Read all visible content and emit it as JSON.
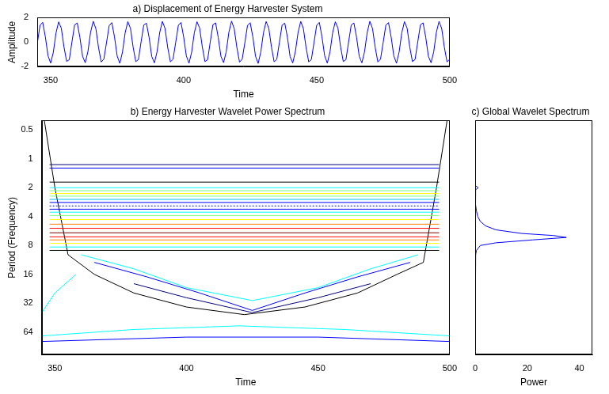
{
  "chart_data": [
    {
      "type": "line",
      "title": "a) Displacement of Energy Harvester System",
      "x_label": "Time",
      "y_label": "Amplitude",
      "color": "#0000ff",
      "grid": false,
      "xlim": [
        345,
        500
      ],
      "xticks": [
        350,
        400,
        450,
        500
      ],
      "ylim": [
        -2,
        2
      ],
      "yticks": [
        -2,
        0,
        2
      ],
      "x": [
        345,
        346,
        347,
        348,
        349,
        350,
        351,
        352,
        353,
        354,
        355,
        356,
        357,
        358,
        359,
        360,
        361,
        362,
        363,
        364,
        365,
        366,
        367,
        368,
        369,
        370,
        371,
        372,
        373,
        374,
        375,
        376,
        377,
        378,
        379,
        380,
        381,
        382,
        383,
        384,
        385,
        386,
        387,
        388,
        389,
        390,
        391,
        392,
        393,
        394,
        395,
        396,
        397,
        398,
        399,
        400,
        401,
        402,
        403,
        404,
        405,
        406,
        407,
        408,
        409,
        410,
        411,
        412,
        413,
        414,
        415,
        416,
        417,
        418,
        419,
        420,
        421,
        422,
        423,
        424,
        425,
        426,
        427,
        428,
        429,
        430,
        431,
        432,
        433,
        434,
        435,
        436,
        437,
        438,
        439,
        440,
        441,
        442,
        443,
        444,
        445,
        446,
        447,
        448,
        449,
        450,
        451,
        452,
        453,
        454,
        455,
        456,
        457,
        458,
        459,
        460,
        461,
        462,
        463,
        464,
        465,
        466,
        467,
        468,
        469,
        470,
        471,
        472,
        473,
        474,
        475,
        476,
        477,
        478,
        479,
        480,
        481,
        482,
        483,
        484,
        485,
        486,
        487,
        488,
        489,
        490,
        491,
        492,
        493,
        494,
        495,
        496,
        497,
        498,
        499,
        500
      ],
      "values": [
        -0.05,
        1.38,
        1.62,
        0.45,
        -1.1,
        -1.7,
        -0.82,
        0.75,
        1.66,
        1.15,
        -0.38,
        -1.56,
        -1.42,
        0.02,
        1.42,
        1.57,
        0.38,
        -1.15,
        -1.67,
        -0.76,
        0.81,
        1.71,
        1.1,
        -0.44,
        -1.61,
        -1.37,
        -0.03,
        1.36,
        1.6,
        0.43,
        -1.12,
        -1.72,
        -0.8,
        0.77,
        1.68,
        1.14,
        -0.4,
        -1.58,
        -1.41,
        0.04,
        1.41,
        1.55,
        0.4,
        -1.16,
        -1.68,
        -0.78,
        0.8,
        1.7,
        1.12,
        -0.42,
        -1.6,
        -1.39,
        -0.02,
        1.39,
        1.61,
        0.42,
        -1.11,
        -1.71,
        -0.81,
        0.76,
        1.67,
        1.16,
        -0.37,
        -1.57,
        -1.43,
        0.03,
        1.43,
        1.58,
        0.39,
        -1.14,
        -1.66,
        -0.77,
        0.82,
        1.72,
        1.11,
        -0.43,
        -1.62,
        -1.38,
        -0.04,
        1.37,
        1.59,
        0.44,
        -1.13,
        -1.73,
        -0.79,
        0.78,
        1.69,
        1.13,
        -0.39,
        -1.59,
        -1.4,
        0.01,
        1.4,
        1.56,
        0.41,
        -1.17,
        -1.69,
        -0.75,
        0.79,
        1.7,
        1.12,
        -0.41,
        -1.6,
        -1.41,
        -0.03,
        1.38,
        1.62,
        0.43,
        -1.1,
        -1.7,
        -0.8,
        0.77,
        1.67,
        1.15,
        -0.38,
        -1.57,
        -1.42,
        0.02,
        1.41,
        1.57,
        0.4,
        -1.15,
        -1.68,
        -0.77,
        0.8,
        1.71,
        1.11,
        -0.42,
        -1.61,
        -1.38,
        -0.02,
        1.39,
        1.6,
        0.42,
        -1.12,
        -1.71,
        -0.79,
        0.78,
        1.68,
        1.14,
        -0.4,
        -1.58,
        -1.4,
        0.03,
        1.42,
        1.58,
        0.4,
        -1.14,
        -1.67,
        -0.78,
        0.81,
        1.7,
        1.12,
        -0.41,
        -1.6,
        -1.39
      ]
    },
    {
      "type": "contour",
      "title": "b) Energy Harvester Wavelet Power Spectrum",
      "x_label": "Time",
      "y_label": "Period (Frequency)",
      "log": "y",
      "grid": false,
      "xlim": [
        345,
        500
      ],
      "xticks": [
        350,
        400,
        450,
        500
      ],
      "ylim": [
        110,
        0.4
      ],
      "yticks": [
        0.5,
        1,
        2,
        4,
        8,
        16,
        32,
        64
      ],
      "series": [
        {
          "color": "#00007f",
          "x": [
            348,
            496
          ],
          "values": [
            1.15,
            1.15
          ]
        },
        {
          "color": "#0000ff",
          "x": [
            348,
            496
          ],
          "values": [
            1.25,
            1.25
          ]
        },
        {
          "color": "#000000",
          "x": [
            348,
            496
          ],
          "values": [
            1.75,
            1.75
          ]
        },
        {
          "color": "#00ffff",
          "x": [
            348,
            496
          ],
          "values": [
            2.0,
            2.0
          ]
        },
        {
          "color": "#7fff7f",
          "x": [
            348,
            496
          ],
          "values": [
            2.15,
            2.15
          ]
        },
        {
          "color": "#ffff00",
          "x": [
            348,
            496
          ],
          "values": [
            2.3,
            2.3
          ]
        },
        {
          "color": "#7fff7f",
          "x": [
            348,
            496
          ],
          "values": [
            2.45,
            2.45
          ]
        },
        {
          "color": "#00bfff",
          "x": [
            348,
            496
          ],
          "values": [
            2.65,
            2.65
          ]
        },
        {
          "color": "#0000ff",
          "x": [
            348,
            496
          ],
          "values": [
            2.85,
            2.85
          ]
        },
        {
          "color": "#0000ff",
          "line_style": "dotted",
          "x": [
            348,
            496
          ],
          "values": [
            3.1,
            3.1
          ]
        },
        {
          "color": "#0000ff",
          "x": [
            348,
            496
          ],
          "values": [
            3.35,
            3.35
          ]
        },
        {
          "color": "#00ffff",
          "x": [
            348,
            496
          ],
          "values": [
            3.6,
            3.6
          ]
        },
        {
          "color": "#7fff7f",
          "x": [
            348,
            496
          ],
          "values": [
            3.9,
            3.9
          ]
        },
        {
          "color": "#ffff00",
          "x": [
            348,
            496
          ],
          "values": [
            4.3,
            4.3
          ]
        },
        {
          "color": "#ff7f00",
          "x": [
            348,
            496
          ],
          "values": [
            4.8,
            4.8
          ]
        },
        {
          "color": "#ff0000",
          "x": [
            348,
            496
          ],
          "values": [
            5.3,
            5.3
          ]
        },
        {
          "color": "#7f0000",
          "x": [
            348,
            496
          ],
          "values": [
            5.9,
            5.9
          ]
        },
        {
          "color": "#ff0000",
          "x": [
            348,
            496
          ],
          "values": [
            6.5,
            6.5
          ]
        },
        {
          "color": "#ff7f00",
          "x": [
            348,
            496
          ],
          "values": [
            7.0,
            7.0
          ]
        },
        {
          "color": "#ffff00",
          "x": [
            348,
            496
          ],
          "values": [
            7.6,
            7.6
          ]
        },
        {
          "color": "#00ffff",
          "x": [
            348,
            496
          ],
          "values": [
            8.3,
            8.3
          ]
        },
        {
          "color": "#000000",
          "x": [
            348,
            496
          ],
          "values": [
            9.0,
            9.0
          ]
        },
        {
          "color": "#000000",
          "x": [
            346,
            350,
            355,
            365,
            380,
            400,
            422,
            445,
            465,
            480,
            490,
            495,
            499
          ],
          "values": [
            0.4,
            2,
            10,
            16,
            25,
            35,
            42,
            35,
            25,
            16,
            12,
            2,
            0.4
          ]
        },
        {
          "color": "#00ffff",
          "x": [
            360,
            380,
            400,
            425,
            450,
            470,
            488
          ],
          "values": [
            10,
            14,
            22,
            30,
            22,
            14,
            10
          ]
        },
        {
          "color": "#0000ff",
          "x": [
            365,
            385,
            405,
            425,
            445,
            465,
            485
          ],
          "values": [
            12,
            17,
            25,
            38,
            25,
            17,
            12
          ]
        },
        {
          "color": "#00007f",
          "x": [
            380,
            400,
            425,
            450,
            470
          ],
          "values": [
            20,
            28,
            40,
            28,
            20
          ]
        },
        {
          "color": "#00ffff",
          "x": [
            345,
            380,
            420,
            460,
            500
          ],
          "values": [
            70,
            60,
            55,
            60,
            70
          ]
        },
        {
          "color": "#0000ff",
          "x": [
            345,
            400,
            450,
            500
          ],
          "values": [
            80,
            72,
            72,
            80
          ]
        },
        {
          "color": "#00ffff",
          "x": [
            345,
            350,
            358
          ],
          "values": [
            40,
            25,
            16
          ]
        }
      ]
    },
    {
      "type": "line",
      "title": "c) Global Wavelet Spectrum",
      "x_label": "Power",
      "log": "y",
      "grid": false,
      "tick_labels": "x",
      "color": "#0000ff",
      "xlim": [
        0,
        45
      ],
      "xticks": [
        0,
        20,
        40
      ],
      "ylim": [
        110,
        0.4
      ],
      "yticks": [
        0.5,
        1,
        2,
        4,
        8,
        16,
        32,
        64
      ],
      "x": [
        0,
        0,
        0,
        0.2,
        1.2,
        0.2,
        0.1,
        0.2,
        0.5,
        1,
        2,
        4,
        8,
        18,
        30,
        35,
        22,
        8,
        2,
        0.5,
        0.2,
        0,
        0,
        0,
        0
      ],
      "values": [
        0.5,
        1,
        1.5,
        1.9,
        2,
        2.1,
        2.5,
        3,
        3.5,
        4,
        4.5,
        5,
        5.5,
        6,
        6.3,
        6.6,
        7,
        7.5,
        8,
        9,
        10,
        16,
        32,
        64,
        100
      ]
    }
  ]
}
